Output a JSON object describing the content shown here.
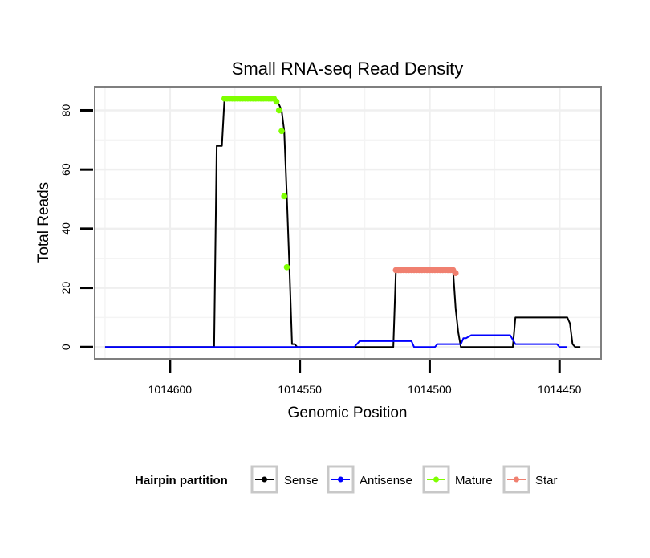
{
  "chart_data": {
    "type": "line",
    "title": "Small RNA-seq Read Density",
    "xlabel": "Genomic Position",
    "ylabel": "Total Reads",
    "xlim": [
      1014629,
      1014434
    ],
    "x_reversed": true,
    "ylim": [
      -4,
      88
    ],
    "x_ticks": [
      1014600,
      1014550,
      1014500,
      1014450
    ],
    "y_ticks": [
      0,
      20,
      40,
      60,
      80
    ],
    "grid": true,
    "legend": {
      "title": "Hairpin partition",
      "position": "bottom",
      "entries": [
        {
          "label": "Sense",
          "color": "#000000"
        },
        {
          "label": "Antisense",
          "color": "#0000ff"
        },
        {
          "label": "Mature",
          "color": "#7fff00"
        },
        {
          "label": "Star",
          "color": "#f08070"
        }
      ]
    },
    "series": [
      {
        "name": "Sense",
        "color": "#000000",
        "style": "line",
        "points": [
          [
            1014625,
            0
          ],
          [
            1014583,
            0
          ],
          [
            1014582,
            68
          ],
          [
            1014580,
            68
          ],
          [
            1014579,
            84
          ],
          [
            1014560,
            84
          ],
          [
            1014558,
            82
          ],
          [
            1014557,
            80
          ],
          [
            1014556,
            73
          ],
          [
            1014555,
            51
          ],
          [
            1014554,
            27
          ],
          [
            1014553,
            1
          ],
          [
            1014552,
            1
          ],
          [
            1014551,
            0
          ],
          [
            1014514,
            0
          ],
          [
            1014513,
            26
          ],
          [
            1014491,
            26
          ],
          [
            1014490,
            13
          ],
          [
            1014489,
            5
          ],
          [
            1014488,
            0
          ],
          [
            1014468,
            0
          ],
          [
            1014467,
            10
          ],
          [
            1014447,
            10
          ],
          [
            1014446,
            8
          ],
          [
            1014445,
            1
          ],
          [
            1014444,
            0
          ],
          [
            1014442,
            0
          ]
        ]
      },
      {
        "name": "Antisense",
        "color": "#0000ff",
        "style": "line",
        "points": [
          [
            1014625,
            0
          ],
          [
            1014529,
            0
          ],
          [
            1014527,
            2
          ],
          [
            1014507,
            2
          ],
          [
            1014506,
            0
          ],
          [
            1014498,
            0
          ],
          [
            1014497,
            1
          ],
          [
            1014491,
            1
          ],
          [
            1014490,
            1
          ],
          [
            1014488,
            1
          ],
          [
            1014487,
            3
          ],
          [
            1014486,
            3
          ],
          [
            1014484,
            4
          ],
          [
            1014471,
            4
          ],
          [
            1014469,
            4
          ],
          [
            1014467,
            1
          ],
          [
            1014451,
            1
          ],
          [
            1014450,
            0
          ],
          [
            1014447,
            0
          ]
        ]
      },
      {
        "name": "Mature",
        "color": "#7fff00",
        "style": "points",
        "points": [
          [
            1014579,
            84
          ],
          [
            1014578,
            84
          ],
          [
            1014577,
            84
          ],
          [
            1014576,
            84
          ],
          [
            1014575,
            84
          ],
          [
            1014574,
            84
          ],
          [
            1014573,
            84
          ],
          [
            1014572,
            84
          ],
          [
            1014571,
            84
          ],
          [
            1014570,
            84
          ],
          [
            1014569,
            84
          ],
          [
            1014568,
            84
          ],
          [
            1014567,
            84
          ],
          [
            1014566,
            84
          ],
          [
            1014565,
            84
          ],
          [
            1014564,
            84
          ],
          [
            1014563,
            84
          ],
          [
            1014562,
            84
          ],
          [
            1014561,
            84
          ],
          [
            1014560,
            84
          ],
          [
            1014559,
            83
          ],
          [
            1014558,
            80
          ],
          [
            1014557,
            73
          ],
          [
            1014556,
            51
          ],
          [
            1014555,
            27
          ]
        ]
      },
      {
        "name": "Star",
        "color": "#f08070",
        "style": "points",
        "points": [
          [
            1014513,
            26
          ],
          [
            1014512,
            26
          ],
          [
            1014511,
            26
          ],
          [
            1014510,
            26
          ],
          [
            1014509,
            26
          ],
          [
            1014508,
            26
          ],
          [
            1014507,
            26
          ],
          [
            1014506,
            26
          ],
          [
            1014505,
            26
          ],
          [
            1014504,
            26
          ],
          [
            1014503,
            26
          ],
          [
            1014502,
            26
          ],
          [
            1014501,
            26
          ],
          [
            1014500,
            26
          ],
          [
            1014499,
            26
          ],
          [
            1014498,
            26
          ],
          [
            1014497,
            26
          ],
          [
            1014496,
            26
          ],
          [
            1014495,
            26
          ],
          [
            1014494,
            26
          ],
          [
            1014493,
            26
          ],
          [
            1014492,
            26
          ],
          [
            1014491,
            26
          ],
          [
            1014490,
            25
          ]
        ]
      }
    ]
  }
}
